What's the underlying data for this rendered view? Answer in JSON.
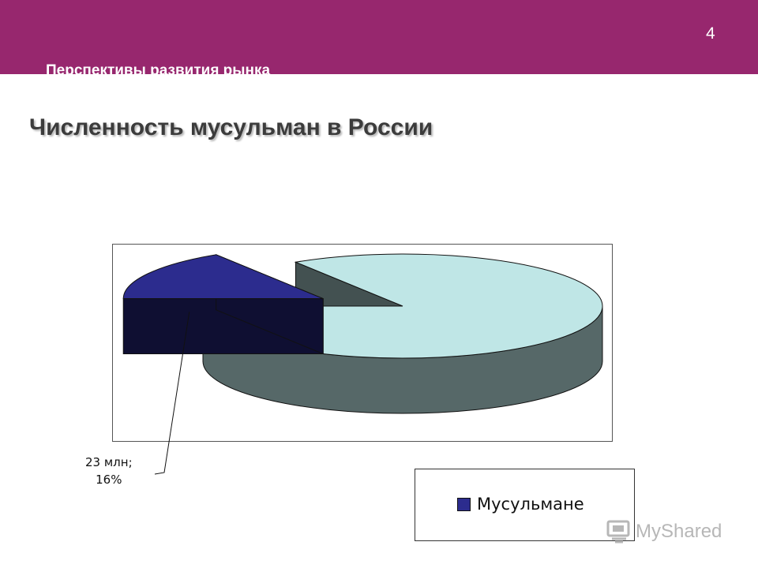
{
  "header": {
    "section_title": "Перспективы развития рынка",
    "page_number": "4",
    "background": "#97276e"
  },
  "slide": {
    "title": "Численность мусульман в России"
  },
  "chart_data": {
    "type": "pie",
    "style": "3d-exploded",
    "slices": [
      {
        "name": "Мусульмане",
        "value_label": "23 млн;",
        "percent_label": "16%",
        "percent": 16,
        "color": "#2c2c8e",
        "exploded": true,
        "in_legend": true
      },
      {
        "name": "",
        "percent": 84,
        "color": "#bfe6e6",
        "exploded": false,
        "in_legend": false
      }
    ],
    "legend": {
      "placement": "bottom-right",
      "entries": [
        "Мусульмане"
      ]
    }
  },
  "watermark": {
    "text": "MyShared",
    "icon": "myshared-logo-icon"
  }
}
